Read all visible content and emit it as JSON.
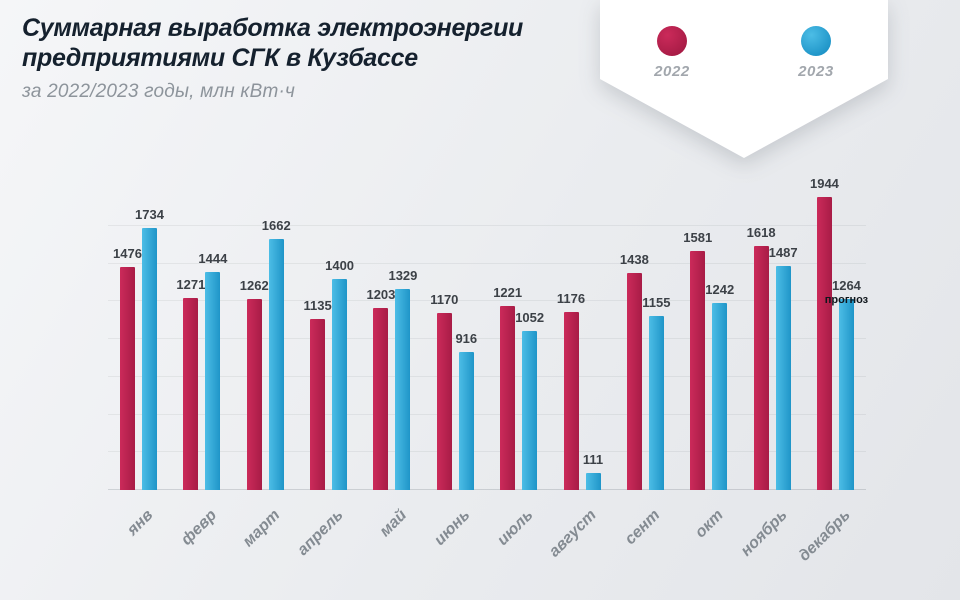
{
  "header": {
    "title_line1": "Суммарная выработка электроэнергии",
    "title_line2": "предприятиями СГК в Кузбассе",
    "subtitle": "за 2022/2023 годы, млн кВт·ч"
  },
  "legend": {
    "items": [
      {
        "label": "2022",
        "color": "#a81c46",
        "color_light": "#cb2a5a"
      },
      {
        "label": "2023",
        "color": "#1f95c8",
        "color_light": "#4cbde6"
      }
    ]
  },
  "chart_data": {
    "type": "bar",
    "title": "Суммарная выработка электроэнергии предприятиями СГК в Кузбассе",
    "subtitle": "за 2022/2023 годы, млн кВт·ч",
    "xlabel": "",
    "ylabel": "млн кВт·ч",
    "ylim": [
      0,
      2000
    ],
    "grid": true,
    "grid_step": 250,
    "legend_position": "top-right",
    "categories": [
      "янв",
      "февр",
      "март",
      "апрель",
      "май",
      "июнь",
      "июль",
      "август",
      "сент",
      "окт",
      "ноябрь",
      "декабрь"
    ],
    "series": [
      {
        "name": "2022",
        "color": "#a81c46",
        "color_light": "#cb2a5a",
        "values": [
          1476,
          1271,
          1262,
          1135,
          1203,
          1170,
          1221,
          1176,
          1438,
          1581,
          1618,
          1944
        ]
      },
      {
        "name": "2023",
        "color": "#1f95c8",
        "color_light": "#4cbde6",
        "values": [
          1734,
          1444,
          1662,
          1400,
          1329,
          916,
          1052,
          111,
          1155,
          1242,
          1487,
          1264
        ]
      }
    ],
    "annotations": [
      {
        "text": "прогноз",
        "category": "декабрь",
        "series": "2023"
      }
    ]
  }
}
